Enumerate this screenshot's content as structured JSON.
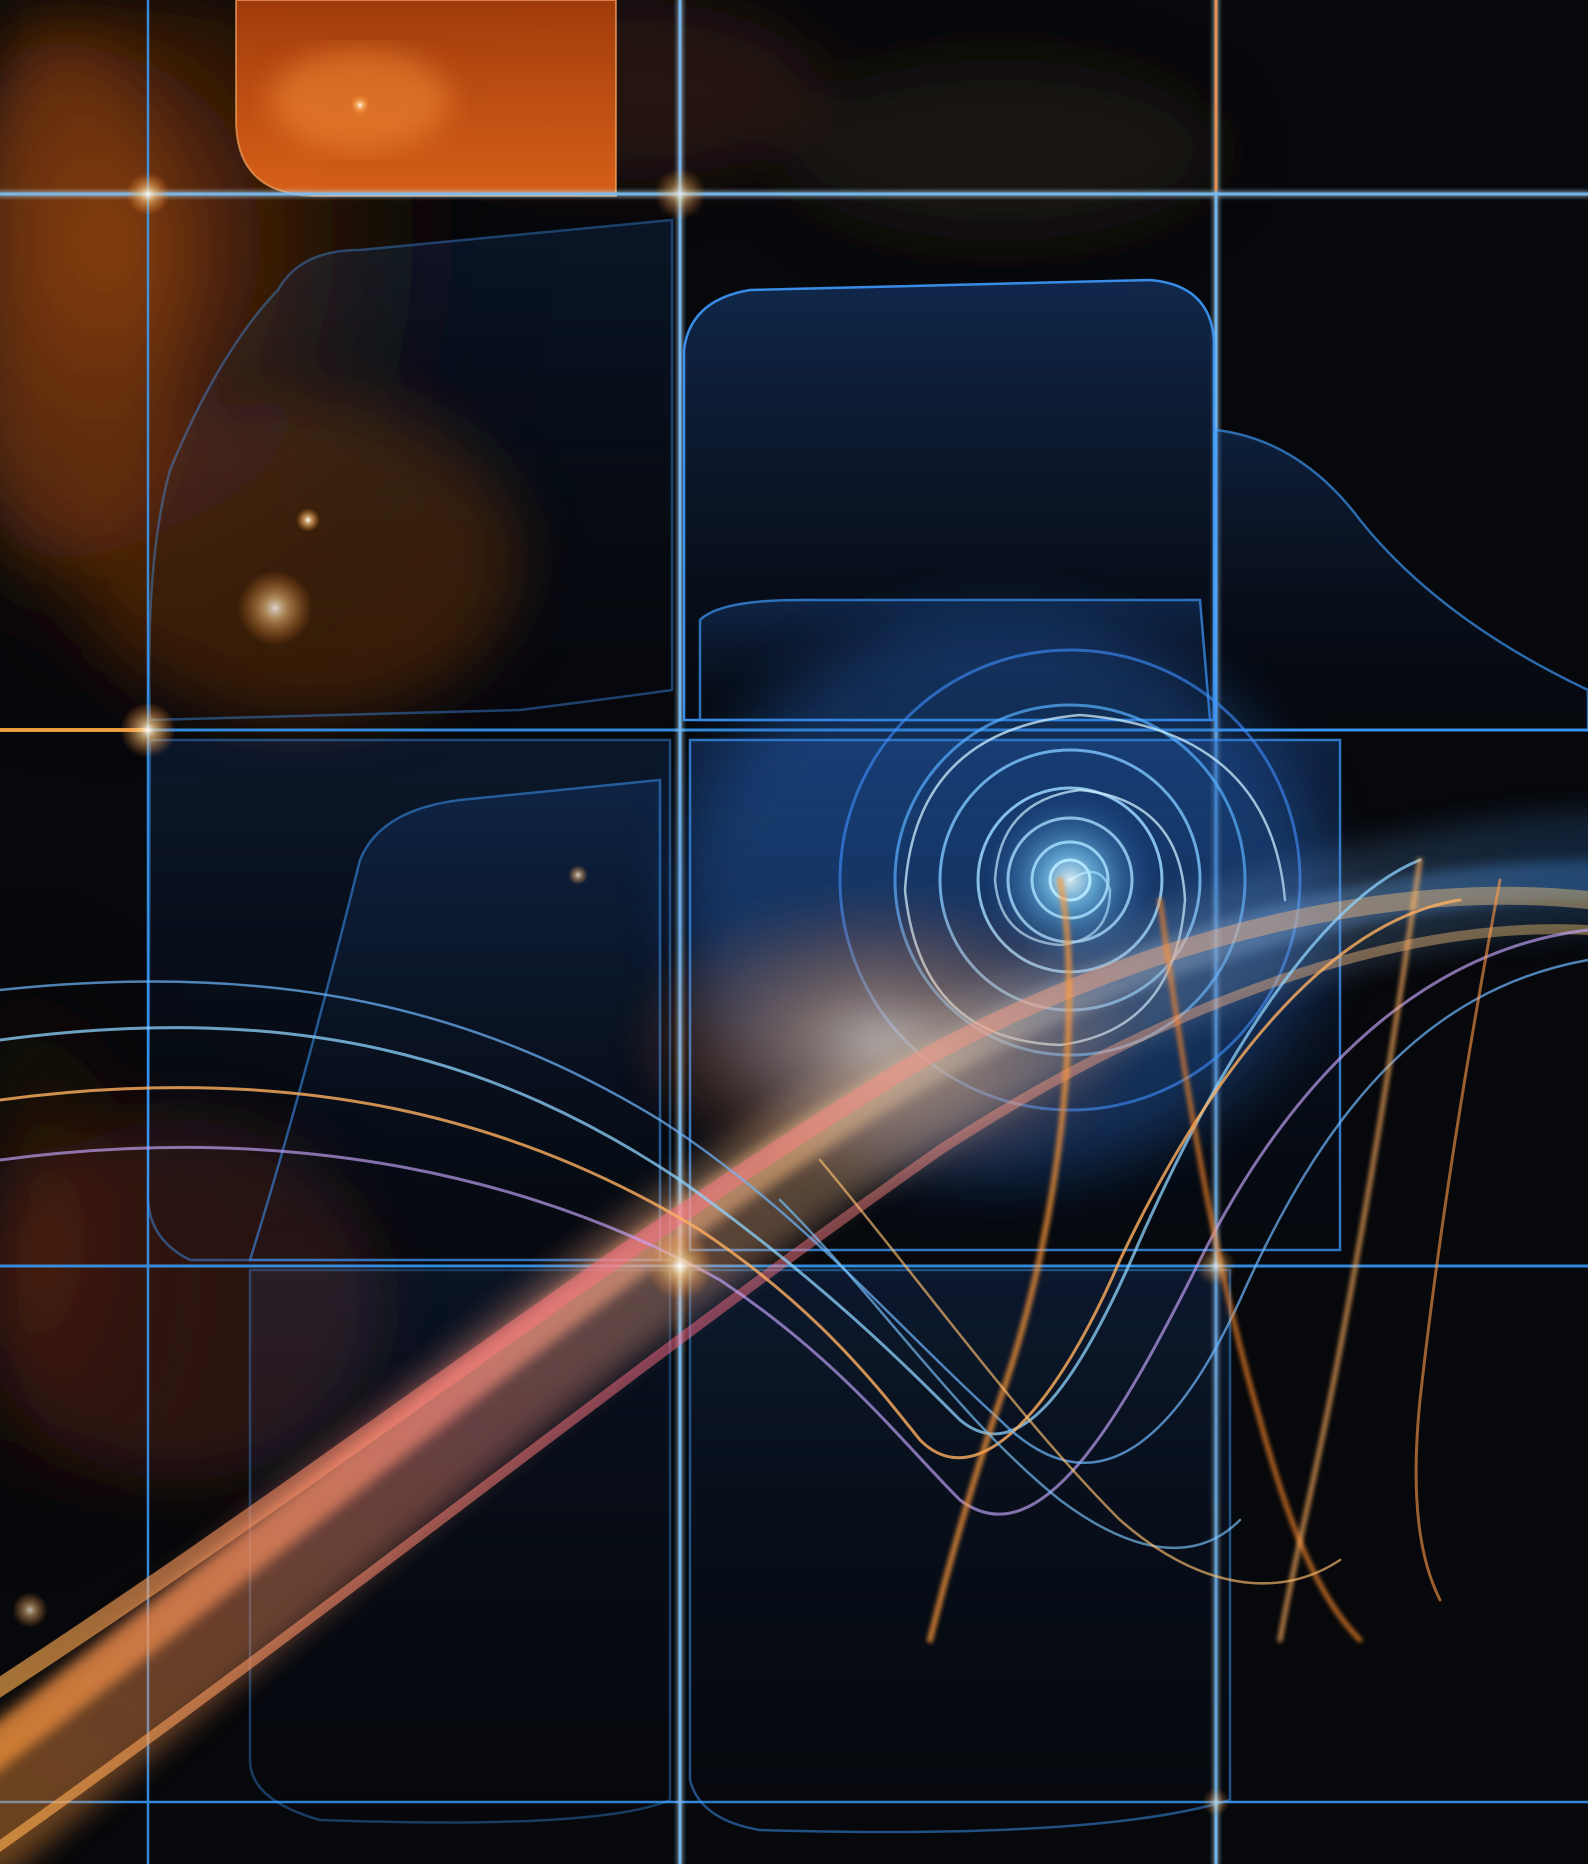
{
  "artwork": {
    "subject": "abstract-fractal-grid-spiral",
    "palette": {
      "background": "#07080b",
      "nebula_orange": "#d9661c",
      "nebula_gold": "#f0a43a",
      "grid_blue": "#2f8fe0",
      "grid_cyan": "#8fe3ff",
      "spiral_core": "#d8f4ff",
      "ribbon_orange": "#ff8a2a",
      "ribbon_pink": "#ff9a8a",
      "ribbon_gold": "#ffd27a"
    }
  }
}
